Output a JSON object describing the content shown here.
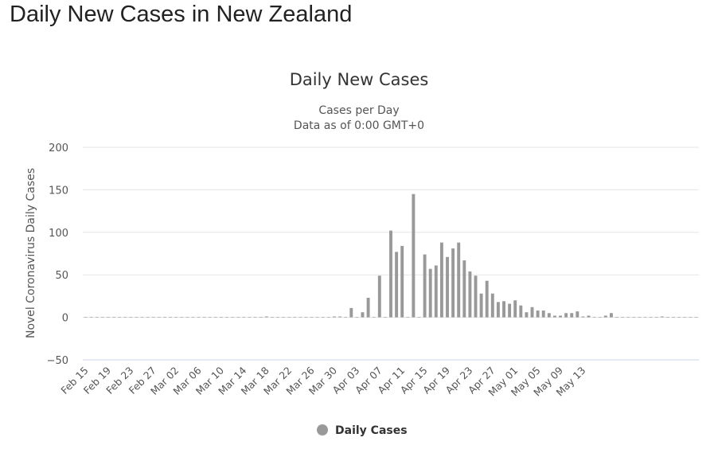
{
  "page": {
    "title": "Daily New Cases in New Zealand"
  },
  "chart_data": {
    "type": "bar",
    "title": "Daily New Cases",
    "subtitle_lines": [
      "Cases per Day",
      "Data as of 0:00 GMT+0"
    ],
    "ylabel": "Novel Coronavirus Daily Cases",
    "xlabel": "",
    "ylim": [
      -50,
      200
    ],
    "yticks": [
      -50,
      0,
      50,
      100,
      150,
      200
    ],
    "grid": true,
    "legend_position": "bottom-center",
    "bar_color": "#999999",
    "x_tick_labels": [
      "Feb 15",
      "Feb 19",
      "Feb 23",
      "Feb 27",
      "Mar 02",
      "Mar 06",
      "Mar 10",
      "Mar 14",
      "Mar 18",
      "Mar 22",
      "Mar 26",
      "Mar 30",
      "Apr 03",
      "Apr 07",
      "Apr 11",
      "Apr 15",
      "Apr 19",
      "Apr 23",
      "Apr 27",
      "May 01",
      "May 05",
      "May 09",
      "May 13"
    ],
    "tick_every": 4,
    "series": [
      {
        "name": "Daily Cases",
        "values": [
          0,
          0,
          0,
          0,
          0,
          0,
          0,
          0,
          0,
          0,
          0,
          0,
          0,
          0,
          0,
          0,
          0,
          0,
          0,
          0,
          0,
          0,
          0,
          0,
          0,
          0,
          0,
          0,
          0,
          0,
          0,
          0,
          1,
          0,
          0,
          0,
          0,
          0,
          0,
          0,
          0,
          0,
          0,
          0,
          1,
          1,
          0,
          11,
          0,
          6,
          23,
          0,
          49,
          0,
          102,
          77,
          84,
          0,
          145,
          0,
          74,
          57,
          61,
          88,
          71,
          81,
          88,
          67,
          54,
          49,
          28,
          43,
          28,
          18,
          19,
          16,
          20,
          14,
          6,
          12,
          8,
          8,
          5,
          2,
          2,
          5,
          5,
          7,
          1,
          2,
          0,
          0,
          2,
          5,
          0,
          0,
          0,
          0,
          0,
          0,
          0,
          0,
          1,
          0,
          0,
          0,
          0,
          0,
          0
        ]
      }
    ]
  }
}
